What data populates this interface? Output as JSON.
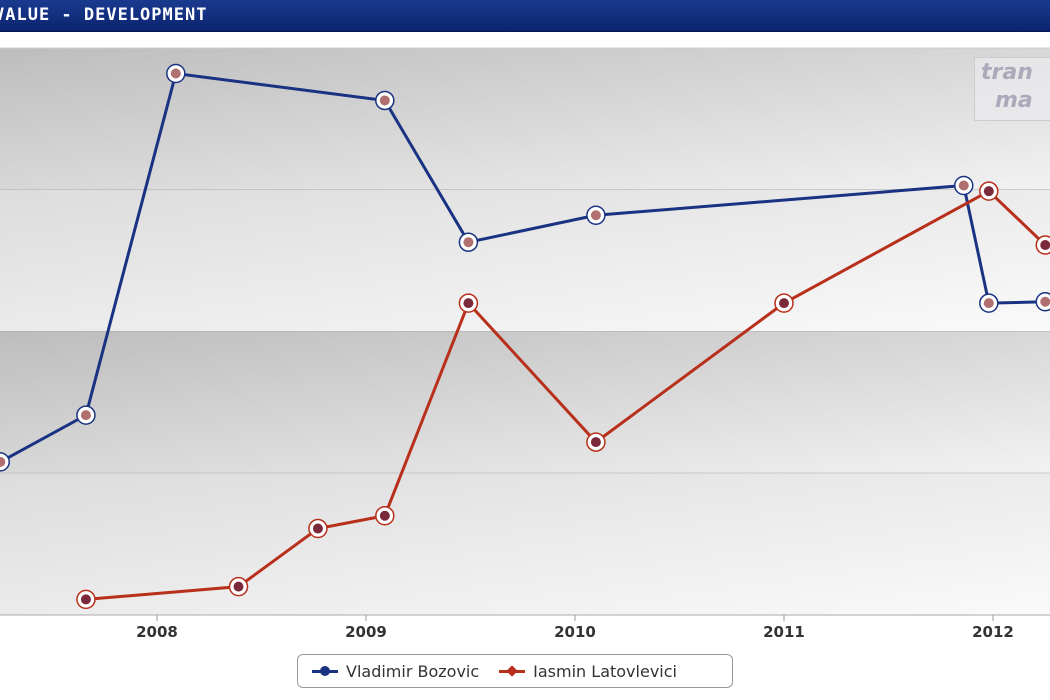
{
  "header": {
    "title": "VALUE - DEVELOPMENT"
  },
  "logo": {
    "line1": "tran",
    "line2": "ma"
  },
  "chart_data": {
    "type": "line",
    "title": "VALUE - DEVELOPMENT",
    "xlabel": "",
    "ylabel": "",
    "x_ticks": [
      "2008",
      "2009",
      "2010",
      "2011",
      "2012"
    ],
    "xlim": [
      2007.25,
      2012.27
    ],
    "ylim": [
      0,
      4
    ],
    "y_bands": 4,
    "grid": true,
    "legend_position": "bottom-center",
    "series": [
      {
        "name": "Vladimir Bozovic",
        "color": "#1a3282",
        "x": [
          2007.25,
          2007.66,
          2008.09,
          2009.09,
          2009.49,
          2010.1,
          2011.86,
          2011.98,
          2012.25
        ],
        "y": [
          1.08,
          1.41,
          3.82,
          3.63,
          2.63,
          2.82,
          3.03,
          2.2,
          2.21
        ]
      },
      {
        "name": "Iasmin Latovlevici",
        "color": "#b8301c",
        "x": [
          2007.66,
          2008.39,
          2008.77,
          2009.09,
          2009.49,
          2010.1,
          2011.0,
          2011.98,
          2012.25
        ],
        "y": [
          0.11,
          0.2,
          0.61,
          0.7,
          2.2,
          1.22,
          2.2,
          2.99,
          2.61
        ]
      }
    ]
  }
}
